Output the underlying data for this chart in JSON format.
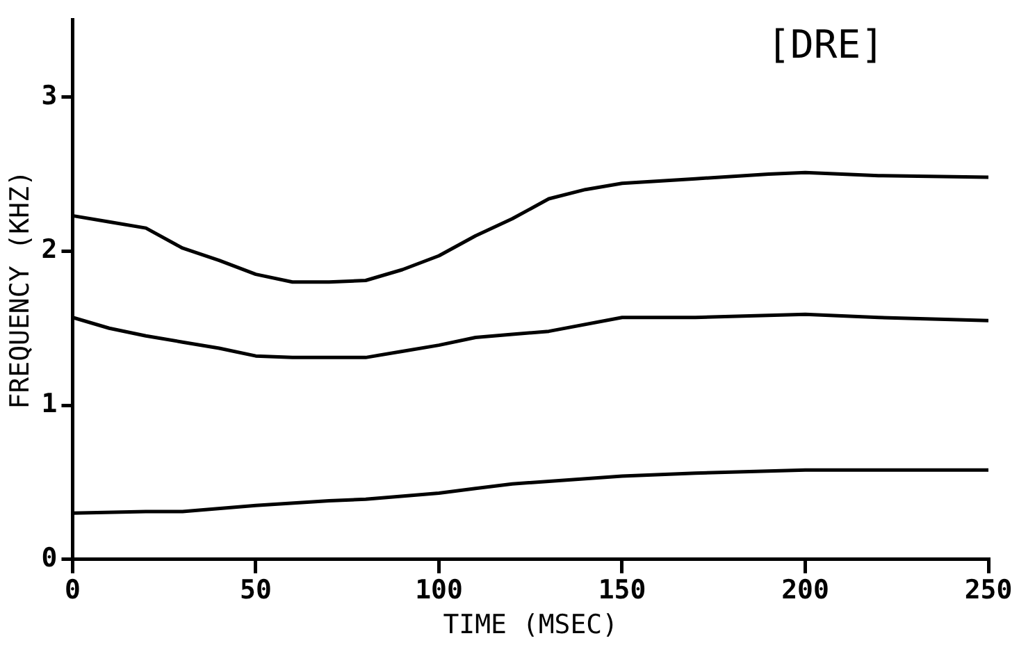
{
  "chart_data": {
    "type": "line",
    "title": "[DRE]",
    "xlabel": "TIME (MSEC)",
    "ylabel": "FREQUENCY (KHZ)",
    "xlim": [
      0,
      250
    ],
    "xticks": [
      0,
      50,
      100,
      150,
      200,
      250
    ],
    "ylim": [
      0,
      3.5
    ],
    "yticks": [
      0,
      1,
      2,
      3
    ],
    "grid": false,
    "legend": false,
    "marker": "none",
    "line_style": "solid",
    "series": [
      {
        "color": "#000000",
        "x": [
          0,
          20,
          30,
          50,
          70,
          80,
          100,
          110,
          120,
          150,
          170,
          200,
          250
        ],
        "values": [
          0.3,
          0.31,
          0.31,
          0.35,
          0.38,
          0.39,
          0.43,
          0.46,
          0.49,
          0.54,
          0.56,
          0.58,
          0.58
        ]
      },
      {
        "color": "#000000",
        "x": [
          0,
          10,
          20,
          30,
          40,
          50,
          60,
          70,
          80,
          90,
          100,
          110,
          120,
          130,
          150,
          170,
          200,
          220,
          250
        ],
        "values": [
          1.57,
          1.5,
          1.45,
          1.41,
          1.37,
          1.32,
          1.31,
          1.31,
          1.31,
          1.35,
          1.39,
          1.44,
          1.46,
          1.48,
          1.57,
          1.57,
          1.59,
          1.57,
          1.55
        ]
      },
      {
        "color": "#000000",
        "x": [
          0,
          10,
          20,
          30,
          40,
          50,
          60,
          70,
          80,
          90,
          100,
          110,
          120,
          130,
          140,
          150,
          170,
          190,
          200,
          220,
          250
        ],
        "values": [
          2.23,
          2.19,
          2.15,
          2.02,
          1.94,
          1.85,
          1.8,
          1.8,
          1.81,
          1.88,
          1.97,
          2.1,
          2.21,
          2.34,
          2.4,
          2.44,
          2.47,
          2.5,
          2.51,
          2.49,
          2.48
        ]
      }
    ]
  }
}
